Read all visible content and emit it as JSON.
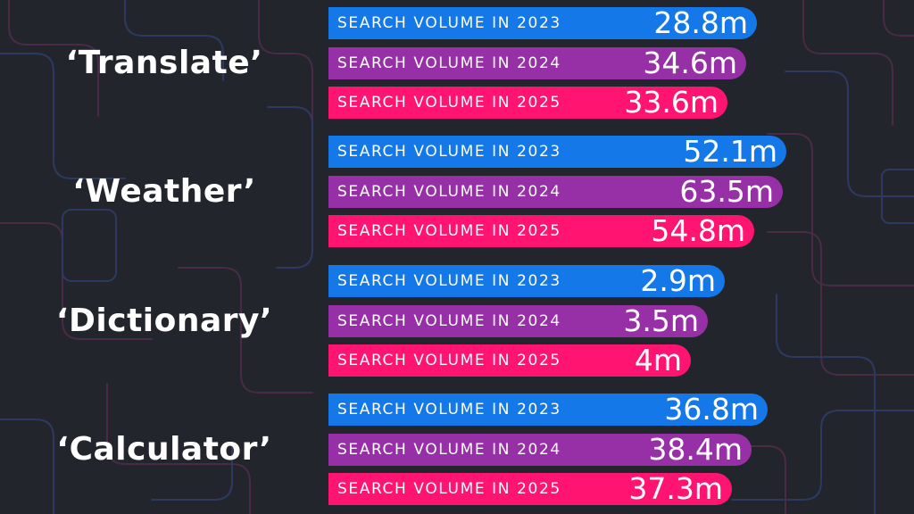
{
  "chart_data": {
    "type": "bar",
    "orientation": "horizontal",
    "title": "",
    "unit": "m",
    "series_names": [
      "2023",
      "2024",
      "2025"
    ],
    "series_colors": [
      "#1478e8",
      "#9730a6",
      "#ff1471"
    ],
    "groups": [
      {
        "term": "‘Translate’",
        "bars": [
          {
            "label": "SEARCH VOLUME IN 2023",
            "value": 28.8,
            "value_label": "28.8m"
          },
          {
            "label": "SEARCH VOLUME IN 2024",
            "value": 34.6,
            "value_label": "34.6m"
          },
          {
            "label": "SEARCH VOLUME IN 2025",
            "value": 33.6,
            "value_label": "33.6m"
          }
        ]
      },
      {
        "term": "‘Weather’",
        "bars": [
          {
            "label": "SEARCH VOLUME IN 2023",
            "value": 52.1,
            "value_label": "52.1m"
          },
          {
            "label": "SEARCH VOLUME IN 2024",
            "value": 63.5,
            "value_label": "63.5m"
          },
          {
            "label": "SEARCH VOLUME IN 2025",
            "value": 54.8,
            "value_label": "54.8m"
          }
        ]
      },
      {
        "term": "‘Dictionary’",
        "bars": [
          {
            "label": "SEARCH VOLUME IN 2023",
            "value": 2.9,
            "value_label": "2.9m"
          },
          {
            "label": "SEARCH VOLUME IN 2024",
            "value": 3.5,
            "value_label": "3.5m"
          },
          {
            "label": "SEARCH VOLUME IN 2025",
            "value": 4,
            "value_label": "4m"
          }
        ]
      },
      {
        "term": "‘Calculator’",
        "bars": [
          {
            "label": "SEARCH VOLUME IN 2023",
            "value": 36.8,
            "value_label": "36.8m"
          },
          {
            "label": "SEARCH VOLUME IN 2024",
            "value": 38.4,
            "value_label": "38.4m"
          },
          {
            "label": "SEARCH VOLUME IN 2025",
            "value": 37.3,
            "value_label": "37.3m"
          }
        ]
      }
    ]
  }
}
